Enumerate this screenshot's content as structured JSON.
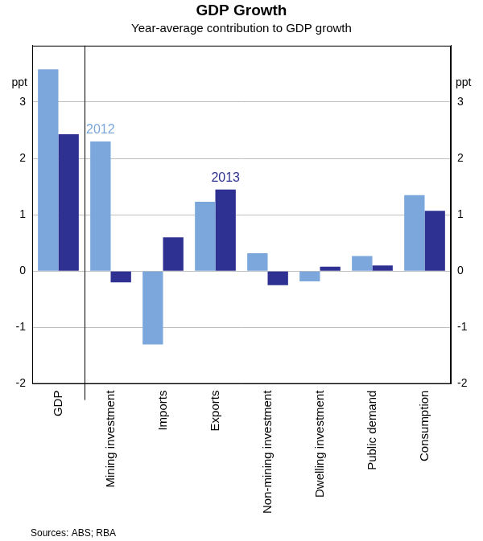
{
  "chart_data": {
    "type": "bar",
    "title": "GDP Growth",
    "subtitle": "Year-average contribution to GDP growth",
    "ylabel": "ppt",
    "source": "Sources: ABS; RBA",
    "categories": [
      "GDP",
      "Mining investment",
      "Imports",
      "Exports",
      "Non-mining investment",
      "Dwelling investment",
      "Public demand",
      "Consumption"
    ],
    "series": [
      {
        "name": "2012",
        "color": "#7ba7dc",
        "values": [
          3.58,
          2.3,
          -1.3,
          1.23,
          0.32,
          -0.18,
          0.27,
          1.35
        ]
      },
      {
        "name": "2013",
        "color": "#2e3192",
        "values": [
          2.43,
          -0.2,
          0.6,
          1.45,
          -0.25,
          0.08,
          0.1,
          1.07
        ]
      }
    ],
    "ylim": [
      -2,
      4
    ],
    "yticks": [
      -2,
      -1,
      0,
      1,
      2,
      3
    ],
    "grid": true
  }
}
